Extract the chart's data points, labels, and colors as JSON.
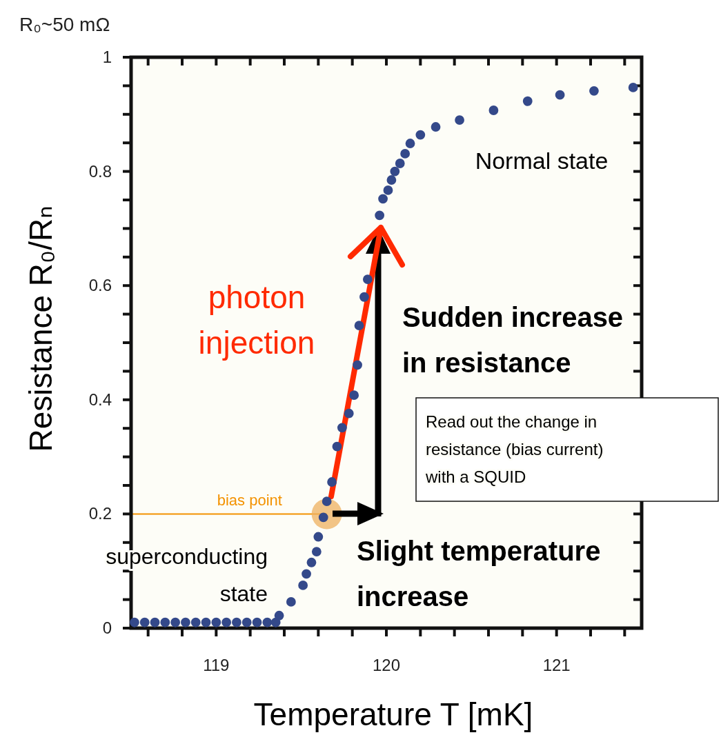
{
  "chart_data": {
    "type": "scatter",
    "title": "R₀~50 mΩ",
    "xlabel": "Temperature  T [mK]",
    "ylabel": "Resistance  R₀/Rₙ",
    "xlim": [
      118.5,
      121.5
    ],
    "ylim": [
      0,
      1
    ],
    "xticks": [
      {
        "value": 118.6,
        "label": null
      },
      {
        "value": 118.8,
        "label": null
      },
      119,
      {
        "value": 119.2,
        "label": null
      },
      {
        "value": 119.4,
        "label": null
      },
      {
        "value": 119.6,
        "label": null
      },
      {
        "value": 119.8,
        "label": null
      },
      120,
      {
        "value": 120.2,
        "label": null
      },
      {
        "value": 120.4,
        "label": null
      },
      {
        "value": 120.6,
        "label": null
      },
      {
        "value": 120.8,
        "label": null
      },
      121,
      {
        "value": 121.2,
        "label": null
      },
      {
        "value": 121.4,
        "label": null
      }
    ],
    "yticks": [
      0,
      {
        "value": 0.05,
        "label": null
      },
      {
        "value": 0.1,
        "label": null
      },
      {
        "value": 0.15,
        "label": null
      },
      0.2,
      {
        "value": 0.25,
        "label": null
      },
      {
        "value": 0.3,
        "label": null
      },
      {
        "value": 0.35,
        "label": null
      },
      0.4,
      {
        "value": 0.45,
        "label": null
      },
      {
        "value": 0.5,
        "label": null
      },
      {
        "value": 0.55,
        "label": null
      },
      0.6,
      {
        "value": 0.65,
        "label": null
      },
      {
        "value": 0.7,
        "label": null
      },
      {
        "value": 0.75,
        "label": null
      },
      0.8,
      {
        "value": 0.85,
        "label": null
      },
      {
        "value": 0.9,
        "label": null
      },
      {
        "value": 0.95,
        "label": null
      },
      1
    ],
    "grid": false,
    "marker": "circle",
    "series": [
      {
        "color": "#34498a",
        "x": [
          118.52,
          118.58,
          118.64,
          118.7,
          118.76,
          118.82,
          118.88,
          118.94,
          119.0,
          119.06,
          119.12,
          119.18,
          119.24,
          119.3,
          119.35,
          119.37,
          119.44,
          119.51,
          119.53,
          119.56,
          119.59,
          119.6,
          119.63,
          119.65,
          119.68,
          119.71,
          119.74,
          119.78,
          119.81,
          119.83,
          119.84,
          119.87,
          119.89,
          119.96,
          119.98,
          120.01,
          120.03,
          120.05,
          120.08,
          120.11,
          120.14,
          120.2,
          120.29,
          120.43,
          120.63,
          120.83,
          121.02,
          121.22,
          121.45
        ],
        "values": [
          0.01,
          0.01,
          0.01,
          0.01,
          0.01,
          0.01,
          0.01,
          0.01,
          0.01,
          0.01,
          0.01,
          0.01,
          0.01,
          0.01,
          0.01,
          0.022,
          0.046,
          0.075,
          0.095,
          0.115,
          0.134,
          0.16,
          0.194,
          0.222,
          0.256,
          0.318,
          0.351,
          0.376,
          0.408,
          0.461,
          0.53,
          0.58,
          0.611,
          0.723,
          0.752,
          0.767,
          0.785,
          0.8,
          0.814,
          0.831,
          0.849,
          0.864,
          0.878,
          0.89,
          0.907,
          0.923,
          0.934,
          0.941,
          0.947
        ]
      }
    ],
    "ref_lines": [
      {
        "axis": "y",
        "value": 0.2,
        "label": "bias point",
        "color": "#f39200"
      }
    ],
    "annotations": [
      "Normal state",
      "photon injection",
      "Sudden increase in resistance",
      "Read out the change in resistance (bias current) with a SQUID",
      "Slight temperature increase",
      "superconducting state"
    ]
  }
}
